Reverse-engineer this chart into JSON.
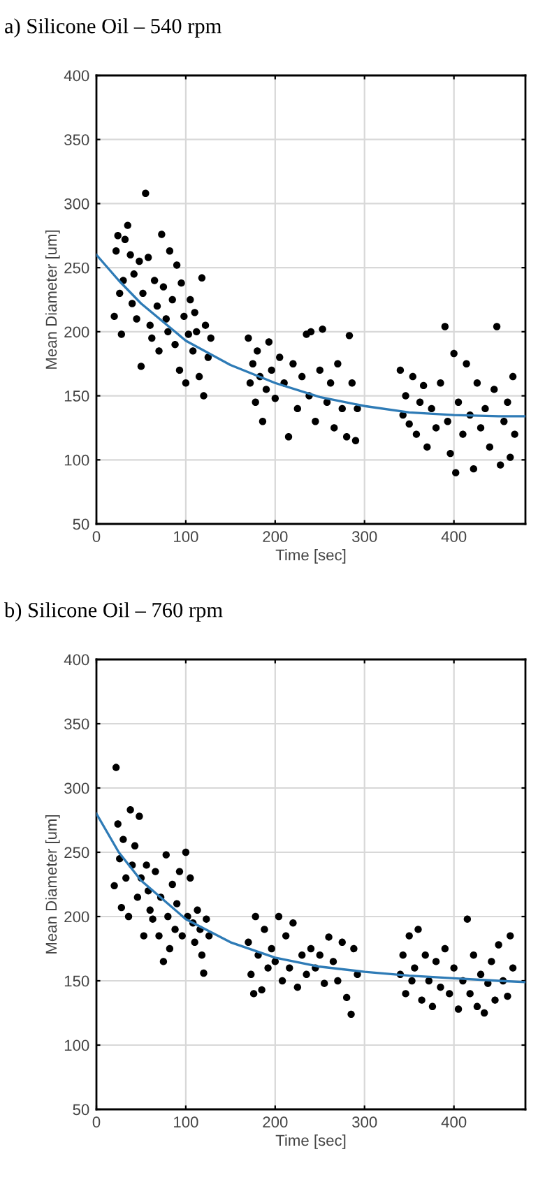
{
  "chart_data": [
    {
      "type": "scatter",
      "title": "a) Silicone Oil – 540 rpm",
      "xlabel": "Time [sec]",
      "ylabel": "Mean Diameter [um]",
      "xlim": [
        0,
        480
      ],
      "ylim": [
        50,
        400
      ],
      "xticks": [
        0,
        100,
        200,
        300,
        400
      ],
      "yticks": [
        50,
        100,
        150,
        200,
        250,
        300,
        350,
        400
      ],
      "grid": true,
      "series": [
        {
          "marker": "circle",
          "color": "#000000",
          "x": [
            20,
            22,
            24,
            26,
            28,
            30,
            32,
            35,
            38,
            40,
            42,
            45,
            48,
            50,
            52,
            55,
            58,
            60,
            62,
            65,
            68,
            70,
            73,
            75,
            78,
            80,
            82,
            85,
            88,
            90,
            93,
            95,
            98,
            100,
            103,
            105,
            108,
            110,
            112,
            115,
            118,
            120,
            122,
            125,
            128,
            170,
            172,
            175,
            178,
            180,
            183,
            186,
            190,
            193,
            196,
            200,
            205,
            210,
            215,
            220,
            225,
            230,
            235,
            238,
            240,
            245,
            250,
            253,
            258,
            262,
            266,
            270,
            275,
            280,
            283,
            286,
            290,
            292,
            340,
            343,
            346,
            350,
            354,
            358,
            362,
            366,
            370,
            375,
            380,
            385,
            390,
            393,
            396,
            400,
            402,
            405,
            410,
            414,
            418,
            422,
            426,
            430,
            435,
            440,
            445,
            448,
            452,
            456,
            460,
            463,
            466,
            468
          ],
          "values": [
            212,
            263,
            275,
            230,
            198,
            240,
            272,
            283,
            260,
            222,
            245,
            210,
            255,
            173,
            230,
            308,
            258,
            205,
            195,
            240,
            220,
            185,
            276,
            235,
            210,
            200,
            263,
            225,
            190,
            252,
            170,
            238,
            212,
            160,
            198,
            225,
            185,
            215,
            200,
            165,
            242,
            150,
            205,
            180,
            195,
            195,
            160,
            175,
            145,
            185,
            165,
            130,
            155,
            192,
            170,
            148,
            180,
            160,
            118,
            175,
            140,
            165,
            198,
            150,
            200,
            130,
            170,
            202,
            145,
            160,
            125,
            175,
            140,
            118,
            197,
            160,
            115,
            140,
            170,
            135,
            150,
            128,
            165,
            120,
            145,
            158,
            110,
            140,
            125,
            160,
            204,
            130,
            105,
            183,
            90,
            145,
            120,
            175,
            135,
            93,
            160,
            125,
            140,
            110,
            155,
            204,
            96,
            130,
            145,
            102,
            165,
            120
          ]
        },
        {
          "type": "line",
          "color": "#2e7bb6",
          "x": [
            0,
            25,
            50,
            100,
            150,
            200,
            250,
            300,
            350,
            400,
            450,
            480
          ],
          "values": [
            260,
            240,
            222,
            193,
            174,
            160,
            149,
            142,
            137,
            135,
            134,
            134
          ]
        }
      ]
    },
    {
      "type": "scatter",
      "title": "b) Silicone Oil – 760 rpm",
      "xlabel": "Time [sec]",
      "ylabel": "Mean Diameter [um]",
      "xlim": [
        0,
        480
      ],
      "ylim": [
        50,
        400
      ],
      "xticks": [
        0,
        100,
        200,
        300,
        400
      ],
      "yticks": [
        50,
        100,
        150,
        200,
        250,
        300,
        350,
        400
      ],
      "grid": true,
      "series": [
        {
          "marker": "circle",
          "color": "#000000",
          "x": [
            20,
            22,
            24,
            26,
            28,
            30,
            33,
            36,
            38,
            40,
            43,
            46,
            48,
            50,
            53,
            56,
            58,
            60,
            63,
            66,
            70,
            72,
            75,
            78,
            80,
            82,
            85,
            88,
            90,
            93,
            96,
            100,
            102,
            105,
            108,
            110,
            113,
            116,
            118,
            120,
            123,
            126,
            170,
            173,
            176,
            178,
            181,
            185,
            188,
            192,
            196,
            200,
            204,
            208,
            212,
            216,
            220,
            225,
            230,
            235,
            240,
            245,
            250,
            255,
            260,
            265,
            270,
            275,
            280,
            285,
            288,
            292,
            340,
            343,
            346,
            350,
            353,
            356,
            360,
            364,
            368,
            372,
            376,
            380,
            385,
            390,
            395,
            400,
            405,
            410,
            415,
            418,
            422,
            426,
            430,
            434,
            438,
            442,
            446,
            450,
            455,
            460,
            463,
            466
          ],
          "values": [
            224,
            316,
            272,
            245,
            207,
            260,
            230,
            200,
            283,
            240,
            255,
            215,
            278,
            230,
            185,
            240,
            220,
            205,
            198,
            235,
            185,
            215,
            165,
            248,
            200,
            175,
            225,
            190,
            210,
            235,
            185,
            250,
            200,
            230,
            195,
            180,
            205,
            190,
            170,
            156,
            198,
            185,
            180,
            155,
            140,
            200,
            170,
            143,
            190,
            160,
            175,
            165,
            200,
            150,
            185,
            160,
            195,
            145,
            170,
            155,
            175,
            160,
            170,
            148,
            184,
            165,
            150,
            180,
            137,
            124,
            175,
            155,
            155,
            170,
            140,
            185,
            150,
            160,
            190,
            135,
            170,
            150,
            130,
            165,
            145,
            175,
            140,
            160,
            128,
            150,
            198,
            140,
            170,
            130,
            155,
            125,
            148,
            165,
            135,
            178,
            150,
            138,
            185,
            160
          ]
        },
        {
          "type": "line",
          "color": "#2e7bb6",
          "x": [
            0,
            25,
            50,
            100,
            150,
            200,
            250,
            300,
            350,
            400,
            450,
            480
          ],
          "values": [
            280,
            250,
            228,
            198,
            180,
            168,
            161,
            157,
            154,
            152,
            150,
            149
          ]
        }
      ]
    }
  ]
}
